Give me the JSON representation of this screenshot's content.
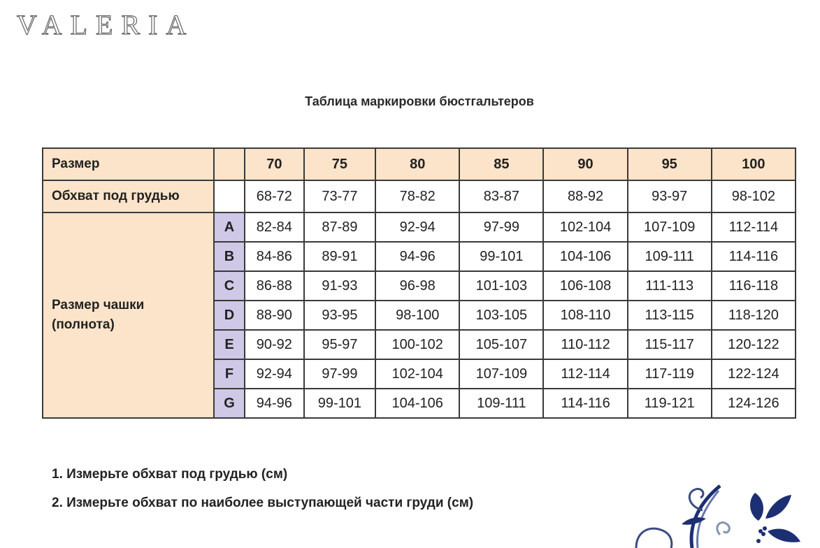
{
  "logo": "VALERIA",
  "title": "Таблица маркировки бюстгальтеров",
  "table": {
    "size_label": "Размер",
    "underbust_label": "Обхват под грудью",
    "cup_label_line1": "Размер чашки",
    "cup_label_line2": "(полнота)",
    "sizes": [
      "70",
      "75",
      "80",
      "85",
      "90",
      "95",
      "100"
    ],
    "underbust": [
      "68-72",
      "73-77",
      "78-82",
      "83-87",
      "88-92",
      "93-97",
      "98-102"
    ],
    "cups": [
      {
        "cup": "A",
        "values": [
          "82-84",
          "87-89",
          "92-94",
          "97-99",
          "102-104",
          "107-109",
          "112-114"
        ]
      },
      {
        "cup": "B",
        "values": [
          "84-86",
          "89-91",
          "94-96",
          "99-101",
          "104-106",
          "109-111",
          "114-116"
        ]
      },
      {
        "cup": "C",
        "values": [
          "86-88",
          "91-93",
          "96-98",
          "101-103",
          "106-108",
          "111-113",
          "116-118"
        ]
      },
      {
        "cup": "D",
        "values": [
          "88-90",
          "93-95",
          "98-100",
          "103-105",
          "108-110",
          "113-115",
          "118-120"
        ]
      },
      {
        "cup": "E",
        "values": [
          "90-92",
          "95-97",
          "100-102",
          "105-107",
          "110-112",
          "115-117",
          "120-122"
        ]
      },
      {
        "cup": "F",
        "values": [
          "92-94",
          "97-99",
          "102-104",
          "107-109",
          "112-114",
          "117-119",
          "122-124"
        ]
      },
      {
        "cup": "G",
        "values": [
          "94-96",
          "99-101",
          "104-106",
          "109-111",
          "114-116",
          "119-121",
          "124-126"
        ]
      }
    ],
    "colors": {
      "header_bg": "#fbe4ca",
      "cup_bg": "#cfc8e6",
      "border": "#3a3a3a"
    }
  },
  "instructions": [
    "1. Измерьте обхват под грудью (см)",
    "2. Измерьте обхват по наиболее выступающей части груди (см)"
  ],
  "ornament": {
    "icon": "floral-ornament-icon",
    "color": "#1d2f73"
  }
}
